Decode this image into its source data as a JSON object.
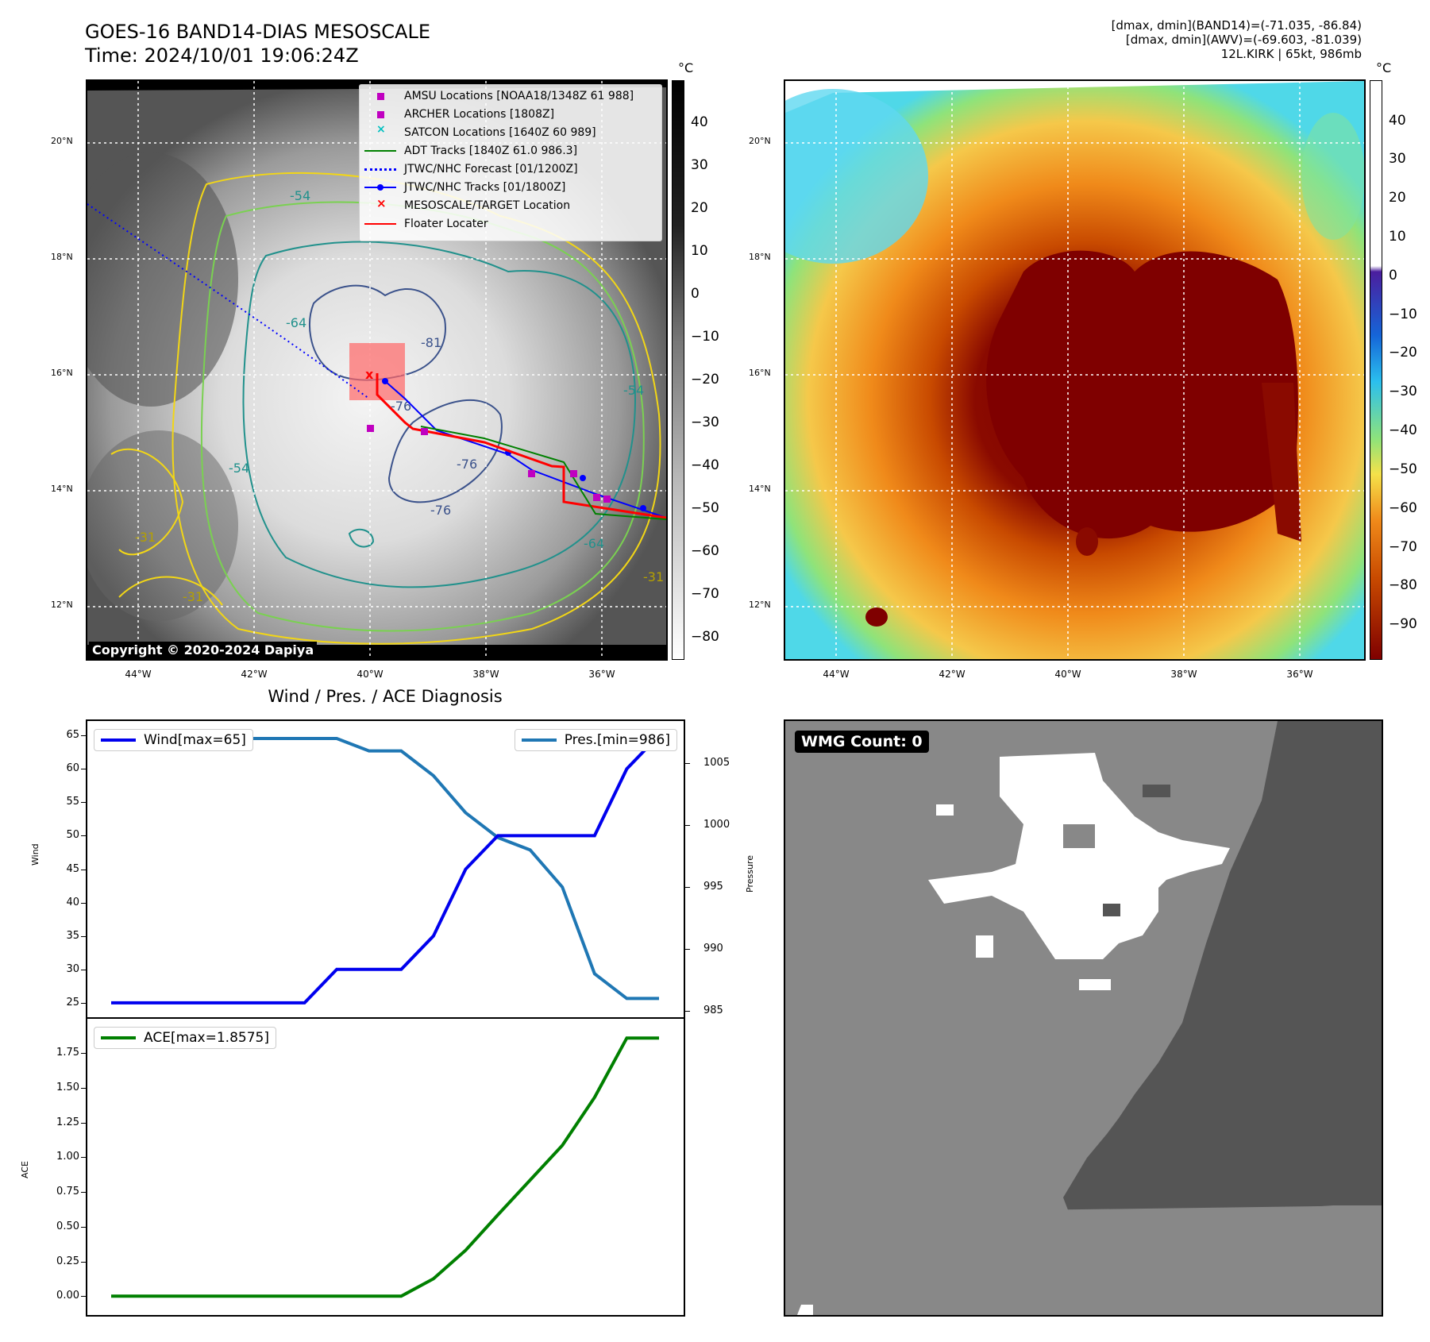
{
  "header": {
    "title_line1": "GOES-16 BAND14-DIAS MESOSCALE",
    "title_line2": "Time: 2024/10/01 19:06:24Z",
    "info_line1": "[dmax, dmin](BAND14)=(-71.035, -86.84)",
    "info_line2": "[dmax, dmin](AWV)=(-69.603, -81.039)",
    "info_line3": "12L.KIRK | 65kt, 986mb"
  },
  "map": {
    "lat_labels": [
      "20°N",
      "18°N",
      "16°N",
      "14°N",
      "12°N"
    ],
    "lon_labels": [
      "44°W",
      "42°W",
      "40°W",
      "38°W",
      "36°W"
    ],
    "copyright": "Copyright © 2020-2024 Dapiya",
    "contour_labels": [
      "-54",
      "-64",
      "-81",
      "-76",
      "-76",
      "-76",
      "-54",
      "-54",
      "-64",
      "-31",
      "-31",
      "-31"
    ],
    "legend": [
      {
        "label": "AMSU Locations [NOAA18/1348Z 61 988]",
        "color": "#c000c0"
      },
      {
        "label": "ARCHER Locations [1808Z]",
        "color": "#c000c0"
      },
      {
        "label": "SATCON Locations [1640Z 60 989]",
        "color": "#00c0c0"
      },
      {
        "label": "ADT Tracks [1840Z 61.0 986.3]",
        "color": "#008000"
      },
      {
        "label": "JTWC/NHC Forecast [01/1200Z]",
        "color": "#0000ff"
      },
      {
        "label": "JTWC/NHC Tracks [01/1800Z]",
        "color": "#0000ff"
      },
      {
        "label": "MESOSCALE/TARGET Location",
        "color": "#ff0000"
      },
      {
        "label": "Floater Locater",
        "color": "#ff0000"
      }
    ]
  },
  "colorbar_left": {
    "unit": "°C",
    "ticks": [
      "40",
      "30",
      "20",
      "10",
      "0",
      "−10",
      "−20",
      "−30",
      "−40",
      "−50",
      "−60",
      "−70",
      "−80"
    ]
  },
  "colorbar_right": {
    "unit": "°C",
    "ticks": [
      "40",
      "30",
      "20",
      "10",
      "0",
      "−10",
      "−20",
      "−30",
      "−40",
      "−50",
      "−60",
      "−70",
      "−80",
      "−90"
    ]
  },
  "diagnosis": {
    "title": "Wind / Pres. / ACE Diagnosis",
    "wind_label": "Wind",
    "pressure_label": "Pressure",
    "ace_label": "ACE",
    "wind_legend": "Wind[max=65]",
    "pres_legend": "Pres.[min=986]",
    "ace_legend": "ACE[max=1.8575]",
    "wind_ticks": [
      "65",
      "60",
      "55",
      "50",
      "45",
      "40",
      "35",
      "30",
      "25"
    ],
    "pres_ticks": [
      "1005",
      "1000",
      "995",
      "990",
      "985"
    ],
    "ace_ticks": [
      "1.75",
      "1.50",
      "1.25",
      "1.00",
      "0.75",
      "0.50",
      "0.25",
      "0.00"
    ],
    "colors": {
      "wind": "#0000ee",
      "pres": "#1f77b4",
      "ace": "#008000"
    }
  },
  "wmg": {
    "label": "WMG Count: 0"
  },
  "chart_data": {
    "type": "line",
    "title": "Wind / Pres. / ACE Diagnosis",
    "x": [
      0,
      1,
      2,
      3,
      4,
      5,
      6,
      7,
      8,
      9,
      10,
      11,
      12,
      13,
      14,
      15,
      16,
      17
    ],
    "series": [
      {
        "name": "Wind[max=65]",
        "axis": "Wind",
        "ylim": [
          23.8,
          66.2
        ],
        "values": [
          25,
          25,
          25,
          25,
          25,
          25,
          25,
          30,
          30,
          30,
          35,
          45,
          50,
          50,
          50,
          50,
          60,
          65
        ]
      },
      {
        "name": "Pres.[min=986]",
        "axis": "Pressure",
        "ylim": [
          985,
          1007.9
        ],
        "values": [
          1007,
          1007,
          1007,
          1007,
          1007,
          1007,
          1007,
          1007,
          1006,
          1006,
          1004,
          1001,
          999,
          998,
          995,
          988,
          986,
          986
        ]
      },
      {
        "name": "ACE[max=1.8575]",
        "axis": "ACE",
        "ylim": [
          -0.09,
          1.95
        ],
        "values": [
          0,
          0,
          0,
          0,
          0,
          0,
          0,
          0,
          0,
          0,
          0.125,
          0.33,
          0.585,
          0.835,
          1.085,
          1.43,
          1.8575,
          1.8575
        ]
      }
    ]
  }
}
